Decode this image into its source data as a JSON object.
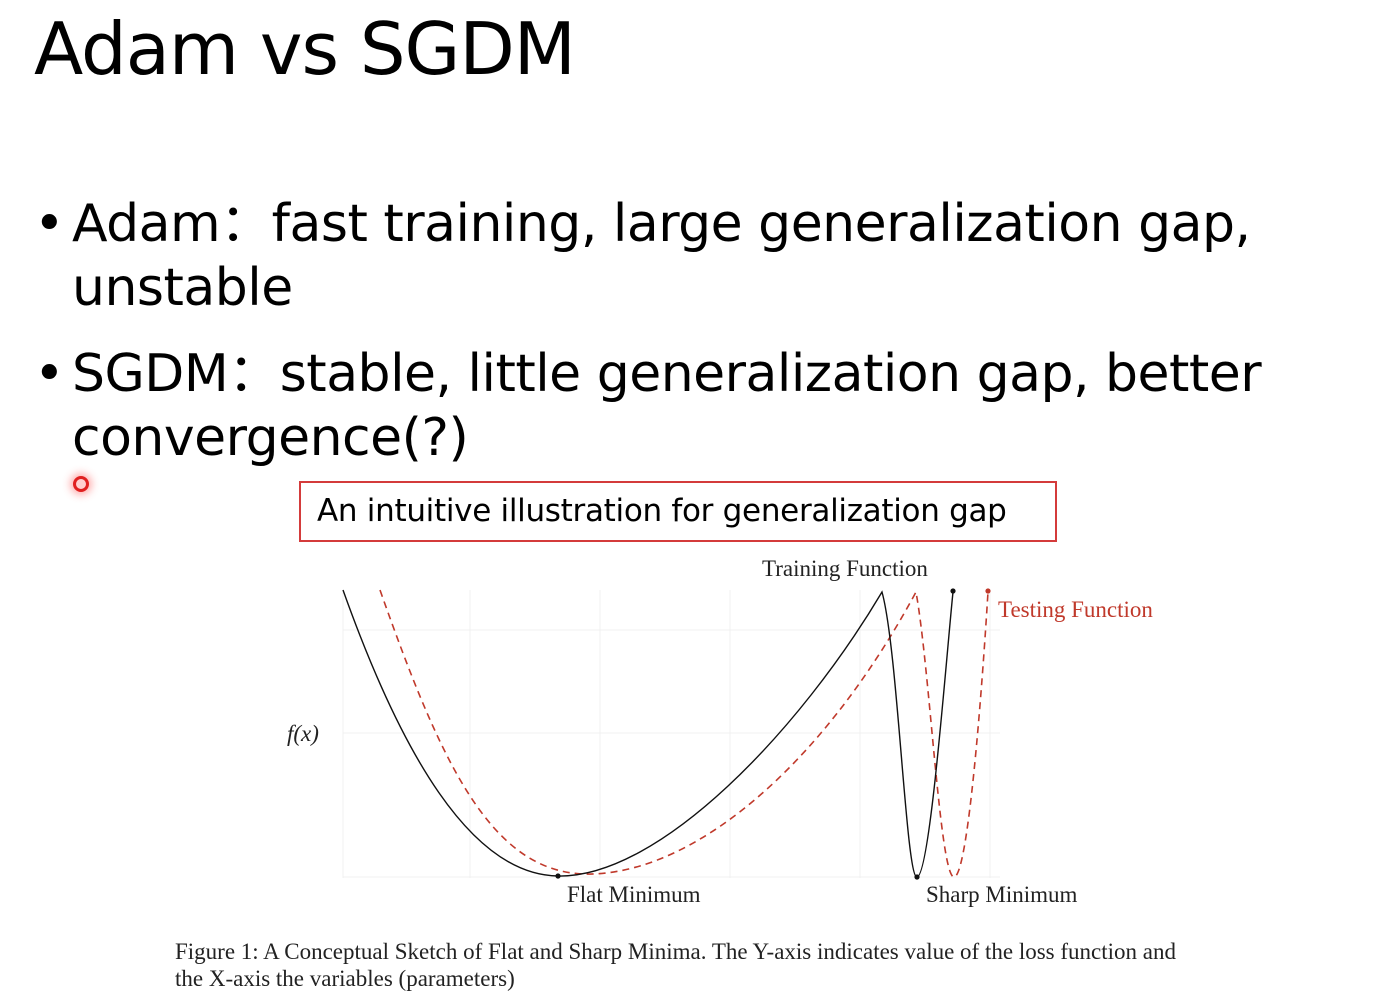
{
  "slide": {
    "title": "Adam vs SGDM",
    "bullets": [
      {
        "marker": "•",
        "text": "Adam：fast training, large generalization gap, unstable"
      },
      {
        "marker": "•",
        "text": "SGDM：stable, little generalization gap, better convergence(?)"
      }
    ],
    "callout": "An intuitive illustration for generalization gap"
  },
  "figure": {
    "y_label": "f(x)",
    "training_label": "Training Function",
    "testing_label": "Testing Function",
    "flat_label": "Flat Minimum",
    "sharp_label": "Sharp Minimum",
    "caption": "Figure 1: A Conceptual Sketch of Flat and Sharp Minima. The Y-axis indicates value of the loss function and the X-axis the variables (parameters)",
    "colors": {
      "training": "#000000",
      "testing": "#c0392b",
      "callout_border": "#d43b3b"
    }
  }
}
